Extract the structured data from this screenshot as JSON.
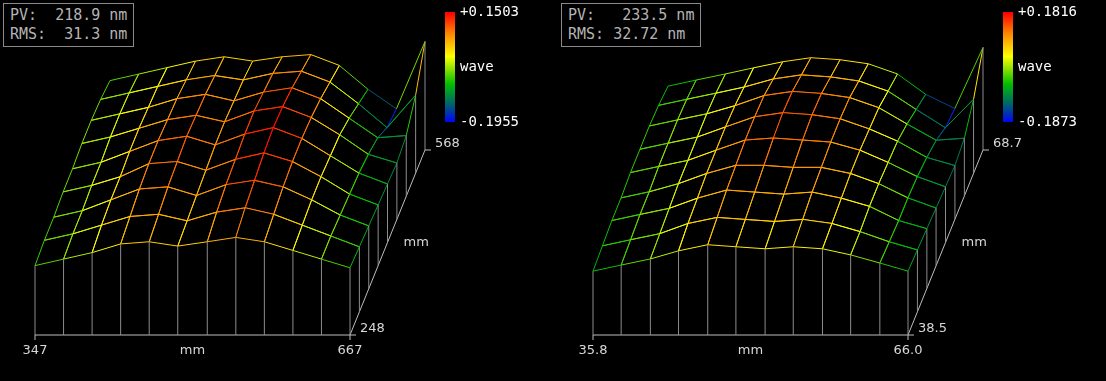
{
  "chart_data": [
    {
      "type": "surface",
      "annotations": [
        "PV:  218.9 nm",
        "RMS:  31.3 nm"
      ],
      "xlabel": "mm",
      "ylabel": "mm",
      "xlim": [
        347,
        667
      ],
      "xticks": [
        347,
        667
      ],
      "ylim": [
        248,
        568
      ],
      "yticks": [
        248,
        568
      ],
      "x": [
        347,
        376,
        405,
        434,
        463,
        492,
        522,
        551,
        580,
        609,
        638,
        667
      ],
      "y": [
        248,
        288,
        328,
        368,
        408,
        448,
        488,
        528,
        568
      ],
      "z": [
        [
          -0.06,
          -0.03,
          0,
          0.04,
          0.05,
          0.03,
          0.05,
          0.07,
          0.05,
          0.01,
          -0.03,
          -0.07
        ],
        [
          -0.05,
          -0.02,
          0.02,
          0.06,
          0.07,
          0.04,
          0.08,
          0.1,
          0.07,
          0.02,
          -0.03,
          -0.08
        ],
        [
          -0.05,
          -0.02,
          0.03,
          0.08,
          0.09,
          0.05,
          0.1,
          0.12,
          0.09,
          0.03,
          -0.04,
          -0.09
        ],
        [
          -0.04,
          -0.01,
          0.03,
          0.09,
          0.1,
          0.06,
          0.11,
          0.14,
          0.1,
          0.03,
          -0.05,
          -0.1
        ],
        [
          -0.04,
          -0.01,
          0.04,
          0.09,
          0.11,
          0.07,
          0.12,
          0.15,
          0.1,
          0.02,
          -0.06,
          -0.11
        ],
        [
          -0.03,
          0,
          0.04,
          0.08,
          0.1,
          0.07,
          0.12,
          0.14,
          0.09,
          0.01,
          -0.08,
          -0.12
        ],
        [
          -0.03,
          0,
          0.03,
          0.07,
          0.09,
          0.06,
          0.1,
          0.12,
          0.07,
          -0.02,
          -0.11,
          -0.1
        ],
        [
          -0.04,
          -0.01,
          0.02,
          0.05,
          0.07,
          0.05,
          0.08,
          0.09,
          0.04,
          -0.06,
          -0.17,
          -0.02
        ],
        [
          -0.06,
          -0.03,
          0,
          0.03,
          0.05,
          0.03,
          0.05,
          0.06,
          0.01,
          -0.1,
          -0.19,
          0.12
        ]
      ],
      "colorbar": {
        "label": "wave",
        "range": [
          -0.1955,
          0.1503
        ],
        "ticks": [
          -0.1955,
          {
            "value": 0.1503,
            "label": "+0.1503"
          }
        ]
      }
    },
    {
      "type": "surface",
      "annotations": [
        "PV:   233.5 nm",
        "RMS: 32.72 nm"
      ],
      "xlabel": "mm",
      "ylabel": "mm",
      "xlim": [
        35.8,
        66
      ],
      "xticks": [
        35.8,
        {
          "value": 66,
          "label": "66.0"
        }
      ],
      "ylim": [
        38.5,
        68.7
      ],
      "yticks": [
        38.5,
        68.7
      ],
      "x": [
        35.8,
        38.5,
        41.3,
        44,
        46.8,
        49.5,
        52.3,
        55,
        57.8,
        60.5,
        63.3,
        66
      ],
      "y": [
        38.5,
        42.3,
        46.1,
        49.8,
        53.6,
        57.4,
        61.2,
        64.9,
        68.7
      ],
      "z": [
        [
          -0.07,
          -0.04,
          -0.01,
          0.03,
          0.06,
          0.05,
          0.04,
          0.05,
          0.04,
          0.01,
          -0.03,
          -0.07
        ],
        [
          -0.06,
          -0.03,
          0,
          0.05,
          0.08,
          0.07,
          0.06,
          0.07,
          0.05,
          0.01,
          -0.04,
          -0.08
        ],
        [
          -0.05,
          -0.02,
          0.01,
          0.06,
          0.1,
          0.09,
          0.08,
          0.09,
          0.06,
          0.02,
          -0.05,
          -0.09
        ],
        [
          -0.05,
          -0.02,
          0.02,
          0.07,
          0.11,
          0.11,
          0.1,
          0.1,
          0.07,
          0.02,
          -0.05,
          -0.1
        ],
        [
          -0.04,
          -0.01,
          0.02,
          0.07,
          0.12,
          0.13,
          0.12,
          0.11,
          0.07,
          0.01,
          -0.06,
          -0.11
        ],
        [
          -0.04,
          -0.01,
          0.02,
          0.07,
          0.12,
          0.14,
          0.13,
          0.11,
          0.06,
          0,
          -0.08,
          -0.12
        ],
        [
          -0.04,
          -0.01,
          0.02,
          0.06,
          0.11,
          0.13,
          0.12,
          0.1,
          0.05,
          -0.03,
          -0.11,
          -0.1
        ],
        [
          -0.05,
          -0.02,
          0.01,
          0.04,
          0.08,
          0.1,
          0.09,
          0.07,
          0.02,
          -0.07,
          -0.16,
          -0.02
        ],
        [
          -0.07,
          -0.04,
          -0.01,
          0.02,
          0.05,
          0.07,
          0.06,
          0.04,
          -0.01,
          -0.11,
          -0.18,
          0.12
        ]
      ],
      "colorbar": {
        "label": "wave",
        "range": [
          -0.1873,
          0.1816
        ],
        "ticks": [
          -0.1873,
          {
            "value": 0.1816,
            "label": "+0.1816"
          }
        ]
      }
    }
  ]
}
